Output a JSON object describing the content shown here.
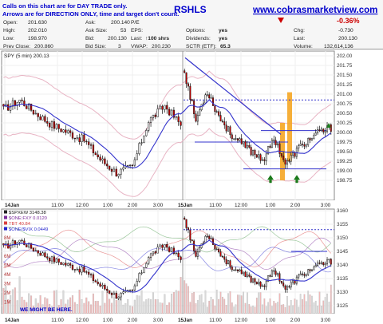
{
  "header": {
    "disclaimer_1": "Calls on this chart are for DAY TRADE only.",
    "disclaimer_2": "Arrows are for DIRECTION ONLY, time and target don't count.",
    "symbol": "RSHLS",
    "site": "www.cobrasmarketview.com",
    "change_pct": "-0.36%",
    "chg_label": "Chg:",
    "chg_value": "-0.730",
    "last_label": "Last:",
    "last_value": "200.130",
    "volume_label": "Volume:",
    "volume_value": "132,614,136"
  },
  "quote_rows": [
    [
      "Open:",
      "201.630",
      "Ask:",
      "200.140",
      "P/E",
      "",
      "",
      ""
    ],
    [
      "High:",
      "202.010",
      "Ask Size:",
      "53",
      "EPS:",
      "",
      "Options:",
      "yes"
    ],
    [
      "Low:",
      "198.970",
      "Bid:",
      "200.130",
      "Last:",
      "↑100 shrs",
      "Dividends:",
      "yes"
    ],
    [
      "Prev Close:",
      "200.860",
      "Bid Size:",
      "3",
      "VWAP:",
      "200.230",
      "SCTR (ETF):",
      "65.3"
    ]
  ],
  "colors": {
    "up_candle": "#ffffff",
    "down_candle": "#cc0000",
    "moving_average": "#3333cc",
    "trendline": "#3333cc",
    "dotted_line": "#3333cc",
    "highlight_bars": "#f5a623",
    "arrows": "#1a7a1a",
    "disclaimer_text": "#0000cc",
    "header_link": "#0000cc",
    "change_negative": "#cc0000"
  },
  "chart_data": [
    {
      "type": "candlestick",
      "legend": "SPY (5 min) 200.13",
      "y_ticks": [
        "202.00",
        "201.75",
        "201.50",
        "201.25",
        "201.00",
        "200.75",
        "200.50",
        "200.25",
        "200.00",
        "199.75",
        "199.50",
        "199.25",
        "199.00",
        "198.75"
      ],
      "ylim": [
        198.65,
        202.1
      ],
      "x_ticks": [
        "14Jan",
        "11:00",
        "12:00",
        "1:00",
        "2:00",
        "3:00",
        "15Jan",
        "11:00",
        "12:00",
        "1:00",
        "2:00",
        "3:00"
      ],
      "session_1_close": [
        200.6,
        200.85,
        200.5,
        200.2,
        200.0,
        199.8,
        199.3,
        198.95,
        199.1,
        200.3,
        200.7,
        200.2
      ],
      "session_2_close": [
        201.6,
        200.3,
        201.1,
        200.45,
        200.0,
        199.7,
        199.5,
        199.3,
        199.85,
        199.15,
        199.55,
        199.8,
        200.0,
        200.13
      ],
      "trendline": [
        [
          201.95,
          "15Jan open"
        ],
        [
          200.0,
          "about 12:55"
        ]
      ],
      "resistance_dotted": 200.85,
      "levels": [
        200.05,
        199.75,
        199.05
      ],
      "arrows": [
        "up",
        "up"
      ],
      "highlight_bars": 2
    },
    {
      "type": "candlestick",
      "legend": [
        {
          "label": "$SPXEW 3148.38",
          "color": "#222222"
        },
        {
          "label": "$ONE:FXY 0.0120",
          "color": "#7a2a9a"
        },
        {
          "label": "TBT 40.84",
          "color": "#d84040"
        },
        {
          "label": "$ONE/$VIX 0.0449",
          "color": "#2222cc"
        }
      ],
      "y_ticks": [
        "3160",
        "3155",
        "3150",
        "3145",
        "3140",
        "3135",
        "3130",
        "3125"
      ],
      "ylim": [
        3122,
        3163
      ],
      "volume_ticks": [
        "8M",
        "7M",
        "6M",
        "5M",
        "4M",
        "3M",
        "2M",
        "1M"
      ],
      "x_ticks": [
        "14Jan",
        "11:00",
        "12:00",
        "1:00",
        "2:00",
        "3:00",
        "15Jan",
        "11:00",
        "12:00",
        "1:00",
        "2:00",
        "3:00"
      ],
      "resistance_dotted": 3153,
      "note": "WE MIGHT BE HERE."
    }
  ]
}
